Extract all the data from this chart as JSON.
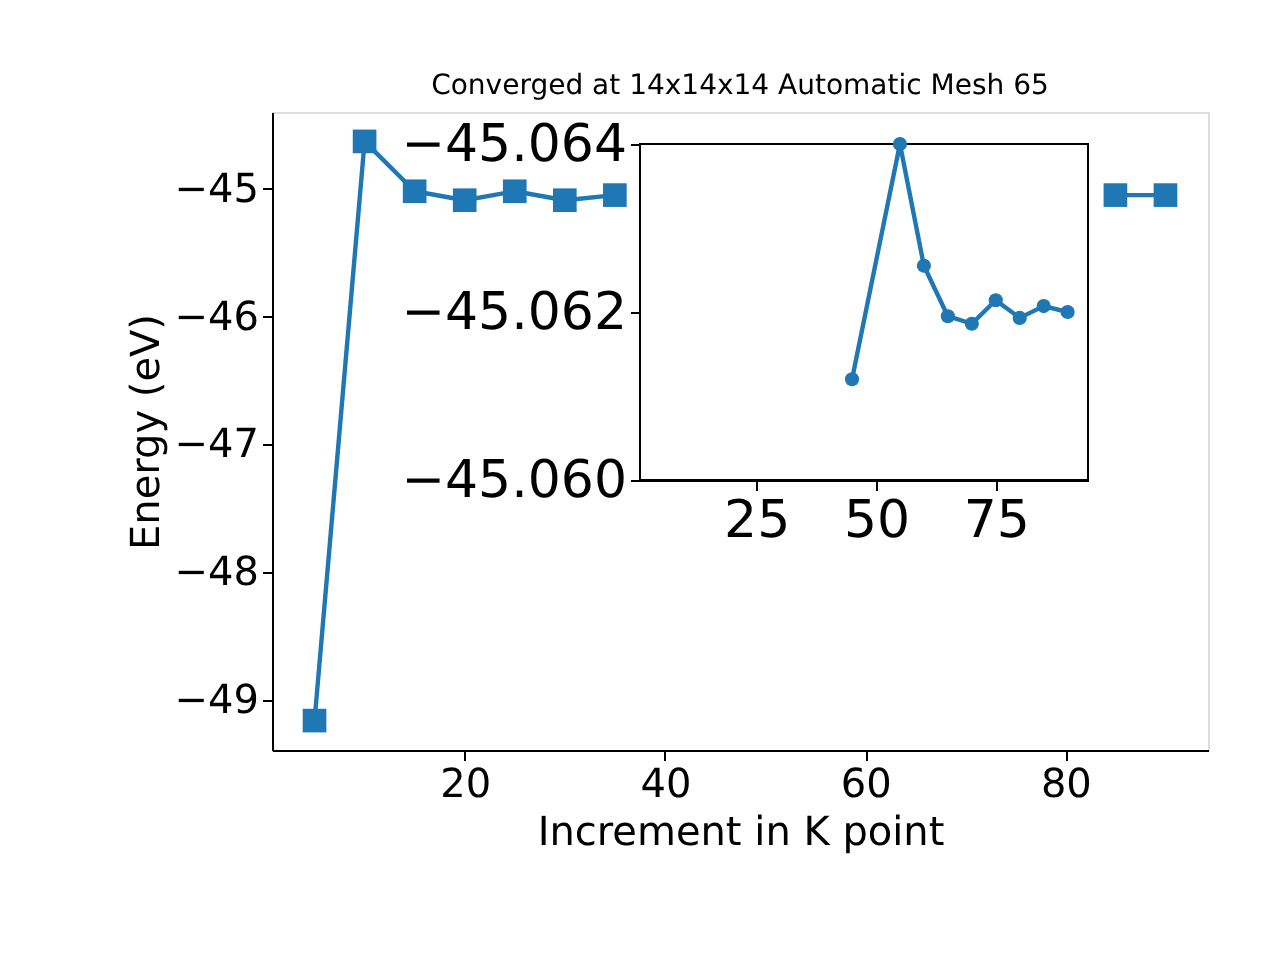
{
  "chart_data": [
    {
      "type": "line",
      "title": "Converged at 14x14x14 Automatic Mesh 65",
      "xlabel": "Increment in K point",
      "ylabel": "Energy (eV)",
      "x": [
        5,
        10,
        15,
        20,
        25,
        30,
        35,
        40,
        45,
        50,
        55,
        60,
        65,
        70,
        75,
        80,
        85,
        90
      ],
      "series": [
        {
          "color": "#1f77b4",
          "values": [
            -49.16,
            -44.63,
            -45.02,
            -45.09,
            -45.02,
            -45.09,
            -45.05,
            null,
            null,
            null,
            null,
            null,
            null,
            null,
            null,
            null,
            -45.05,
            -45.05
          ]
        }
      ],
      "marker": "square",
      "xlim": [
        0.75,
        94.25
      ],
      "ylim": [
        -49.39,
        -44.4
      ],
      "xticks": [
        20,
        40,
        60,
        80
      ],
      "yticks": [
        -49,
        -48,
        -47,
        -46,
        -45
      ],
      "grid": false
    },
    {
      "type": "line",
      "x": [
        45,
        55,
        60,
        65,
        70,
        75,
        80,
        85,
        90
      ],
      "series": [
        {
          "color": "#1f77b4",
          "values": [
            -45.0612,
            -45.064,
            -45.06255,
            -45.06195,
            -45.06186,
            -45.06214,
            -45.06193,
            -45.06207,
            -45.062
          ]
        }
      ],
      "marker": "circle",
      "xlim": [
        0.75,
        94.25
      ],
      "ylim": [
        -45.06,
        -45.064
      ],
      "xticks": [
        25,
        50,
        75
      ],
      "yticks": [
        {
          "value": -45.064,
          "label": "−45.064"
        },
        {
          "value": -45.062,
          "label": "−45.062"
        },
        {
          "value": -45.06,
          "label": "−45.060"
        }
      ],
      "grid": false
    }
  ]
}
